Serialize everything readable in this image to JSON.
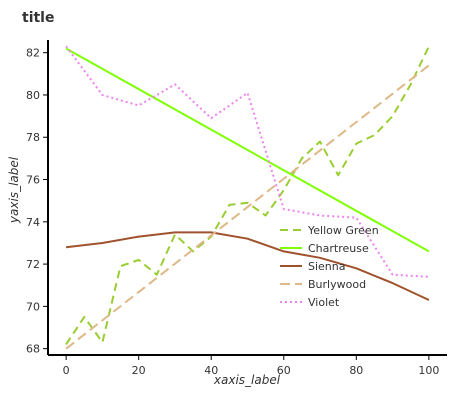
{
  "chart_data": {
    "type": "line",
    "title": "title",
    "xlabel": "xaxis_label",
    "ylabel": "yaxis_label",
    "xlim": [
      -5,
      105
    ],
    "ylim": [
      67.7,
      82.6
    ],
    "x_ticks": [
      0,
      20,
      40,
      60,
      80,
      100
    ],
    "y_ticks": [
      68,
      70,
      72,
      74,
      76,
      78,
      80,
      82
    ],
    "grid": false,
    "legend_position": "right, middle",
    "series": [
      {
        "name": "Yellow Green",
        "color": "#9acd32",
        "dash": "8,5",
        "points": [
          [
            0,
            68.2
          ],
          [
            5,
            69.5
          ],
          [
            10,
            68.3
          ],
          [
            15,
            71.9
          ],
          [
            20,
            72.2
          ],
          [
            25,
            71.5
          ],
          [
            30,
            73.4
          ],
          [
            35,
            72.6
          ],
          [
            40,
            73.3
          ],
          [
            45,
            74.8
          ],
          [
            50,
            74.9
          ],
          [
            55,
            74.3
          ],
          [
            60,
            75.5
          ],
          [
            65,
            77.0
          ],
          [
            70,
            77.8
          ],
          [
            75,
            76.2
          ],
          [
            80,
            77.7
          ],
          [
            85,
            78.1
          ],
          [
            90,
            79.0
          ],
          [
            95,
            80.5
          ],
          [
            100,
            82.3
          ]
        ]
      },
      {
        "name": "Chartreuse",
        "color": "#7fff00",
        "dash": "",
        "points": [
          [
            0,
            82.2
          ],
          [
            100,
            72.6
          ]
        ]
      },
      {
        "name": "Sienna",
        "color": "#a0522d",
        "dash": "",
        "points": [
          [
            0,
            72.8
          ],
          [
            10,
            73.0
          ],
          [
            20,
            73.3
          ],
          [
            30,
            73.5
          ],
          [
            40,
            73.5
          ],
          [
            50,
            73.2
          ],
          [
            60,
            72.6
          ],
          [
            70,
            72.3
          ],
          [
            80,
            71.8
          ],
          [
            90,
            71.1
          ],
          [
            100,
            70.3
          ]
        ]
      },
      {
        "name": "Burlywood",
        "color": "#deb887",
        "dash": "10,5",
        "points": [
          [
            0,
            68.0
          ],
          [
            100,
            81.4
          ]
        ]
      },
      {
        "name": "Violet",
        "color": "#ee82ee",
        "dash": "2,3",
        "points": [
          [
            0,
            82.3
          ],
          [
            10,
            80.0
          ],
          [
            20,
            79.5
          ],
          [
            30,
            80.5
          ],
          [
            40,
            78.9
          ],
          [
            50,
            80.1
          ],
          [
            60,
            74.6
          ],
          [
            70,
            74.3
          ],
          [
            80,
            74.2
          ],
          [
            90,
            71.5
          ],
          [
            100,
            71.4
          ]
        ]
      }
    ],
    "legend": [
      "Yellow Green",
      "Chartreuse",
      "Sienna",
      "Burlywood",
      "Violet"
    ]
  }
}
